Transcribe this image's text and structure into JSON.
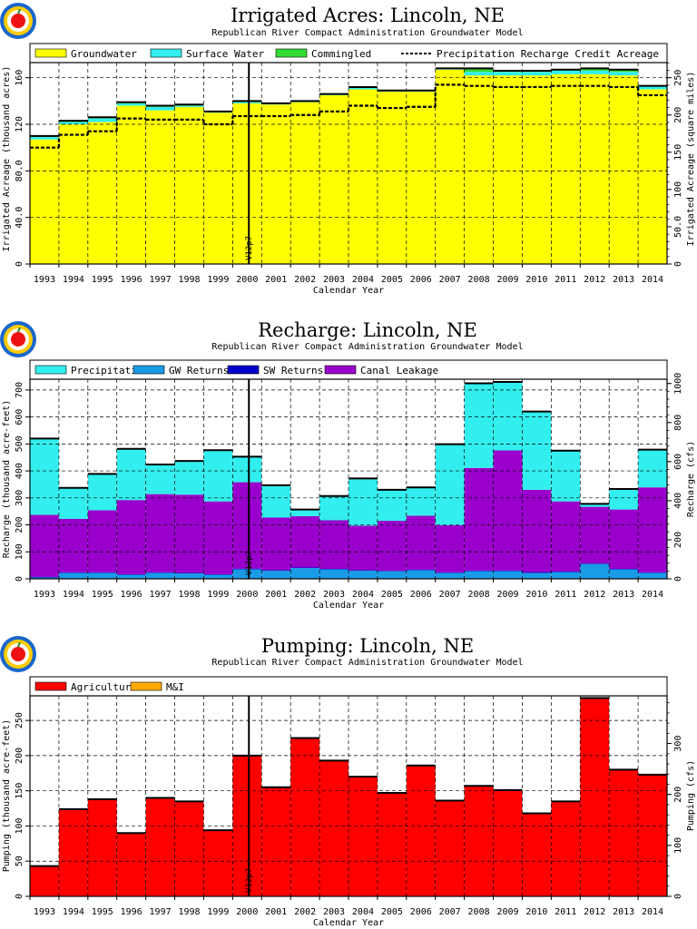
{
  "colors": {
    "groundwater": "#ffff00",
    "surface_water": "#33eeee",
    "commingled": "#33dd33",
    "precipitation": "#33eeee",
    "gw_returns": "#1a9be6",
    "sw_returns": "#0000cc",
    "canal_leakage": "#9900cc",
    "agricultural": "#ff0000",
    "mi": "#ffaa00"
  },
  "charts": [
    {
      "title": "Irrigated Acres: Lincoln, NE",
      "subtitle": "Republican River Compact Administration Groundwater Model"
    },
    {
      "title": "Recharge: Lincoln, NE",
      "subtitle": "Republican River Compact Administration Groundwater Model"
    },
    {
      "title": "Pumping: Lincoln, NE",
      "subtitle": "Republican River Compact Administration Groundwater Model"
    }
  ],
  "chart_data": [
    {
      "type": "bar",
      "stacked": true,
      "title": "Irrigated Acres: Lincoln, NE",
      "subtitle": "Republican River Compact Administration Groundwater Model",
      "xlabel": "Calendar Year",
      "ylabel": "Irrigated Acreage (thousand acres)",
      "y2label": "Irrigated Acreage (square miles)",
      "categories": [
        "1993",
        "1994",
        "1995",
        "1996",
        "1997",
        "1998",
        "1999",
        "2000",
        "2001",
        "2002",
        "2003",
        "2004",
        "2005",
        "2006",
        "2007",
        "2008",
        "2009",
        "2010",
        "2011",
        "2012",
        "2013",
        "2014"
      ],
      "ylim": [
        0,
        173
      ],
      "yticks": [
        "0",
        "40.0",
        "80.0",
        "120",
        "160"
      ],
      "ytick_values": [
        0,
        40,
        80,
        120,
        160
      ],
      "y2lim": [
        0,
        270.3
      ],
      "y2ticks": [
        "0",
        "50.0",
        "100",
        "150",
        "200",
        "250"
      ],
      "y2tick_values": [
        0,
        50,
        100,
        150,
        200,
        250
      ],
      "legend": [
        "Groundwater",
        "Surface Water",
        "Commingled",
        "Precipitation Recharge Credit Acreage"
      ],
      "series": [
        {
          "name": "Groundwater",
          "values": [
            107,
            120,
            122,
            136,
            132,
            135,
            130,
            138,
            137,
            139,
            145,
            150,
            148,
            148,
            167,
            162,
            162,
            162,
            163,
            163,
            162,
            150
          ]
        },
        {
          "name": "Surface Water",
          "values": [
            2,
            2,
            3,
            2,
            3,
            1,
            1,
            1,
            1,
            1,
            1,
            2,
            1,
            1,
            1,
            3,
            3,
            3,
            3,
            3,
            3,
            3
          ]
        },
        {
          "name": "Commingled",
          "values": [
            1,
            1,
            1,
            1,
            1,
            1,
            0,
            1,
            0,
            0,
            0,
            0,
            0,
            0,
            0,
            3,
            1,
            1,
            1,
            2,
            2,
            0
          ]
        }
      ],
      "line_series": {
        "name": "Precipitation Recharge Credit Acreage",
        "values": [
          100,
          111,
          114,
          125,
          124,
          124,
          120,
          127,
          127,
          128,
          131,
          136,
          134,
          135,
          154,
          153,
          152,
          152,
          153,
          153,
          152,
          145
        ]
      },
      "vline": {
        "x": 2001,
        "label": "V12p7"
      },
      "legend_location": "top"
    },
    {
      "type": "bar",
      "stacked": true,
      "title": "Recharge: Lincoln, NE",
      "subtitle": "Republican River Compact Administration Groundwater Model",
      "xlabel": "Calendar Year",
      "ylabel": "Recharge (thousand acre-feet)",
      "y2label": "Recharge (cfs)",
      "categories": [
        "1993",
        "1994",
        "1995",
        "1996",
        "1997",
        "1998",
        "1999",
        "2000",
        "2001",
        "2002",
        "2003",
        "2004",
        "2005",
        "2006",
        "2007",
        "2008",
        "2009",
        "2010",
        "2011",
        "2012",
        "2013",
        "2014"
      ],
      "ylim": [
        0,
        740
      ],
      "yticks": [
        "0",
        "100",
        "200",
        "300",
        "400",
        "500",
        "600",
        "700"
      ],
      "ytick_values": [
        0,
        100,
        200,
        300,
        400,
        500,
        600,
        700
      ],
      "y2lim": [
        0,
        1022
      ],
      "y2ticks": [
        "0",
        "200",
        "400",
        "600",
        "800",
        "1000"
      ],
      "y2tick_values": [
        0,
        200,
        400,
        600,
        800,
        1000
      ],
      "legend": [
        "Precipitation",
        "GW Returns",
        "SW Returns",
        "Canal Leakage"
      ],
      "series": [
        {
          "name": "GW Returns",
          "values": [
            5,
            22,
            22,
            15,
            22,
            20,
            15,
            35,
            30,
            40,
            35,
            30,
            28,
            32,
            22,
            28,
            28,
            22,
            25,
            55,
            35,
            22
          ]
        },
        {
          "name": "SW Returns",
          "values": [
            2,
            2,
            2,
            2,
            2,
            2,
            2,
            3,
            2,
            2,
            2,
            2,
            2,
            2,
            2,
            3,
            3,
            3,
            2,
            2,
            2,
            2
          ]
        },
        {
          "name": "Canal Leakage",
          "values": [
            230,
            198,
            230,
            275,
            290,
            290,
            270,
            320,
            195,
            190,
            180,
            165,
            185,
            200,
            175,
            380,
            445,
            305,
            260,
            210,
            220,
            315
          ]
        },
        {
          "name": "Precipitation",
          "values": [
            283,
            115,
            135,
            190,
            110,
            125,
            190,
            95,
            120,
            25,
            90,
            175,
            115,
            105,
            300,
            314,
            254,
            290,
            188,
            11,
            76,
            140
          ]
        }
      ],
      "vline": {
        "x": 2001,
        "label": "V12p7"
      },
      "legend_location": "top"
    },
    {
      "type": "bar",
      "stacked": true,
      "title": "Pumping: Lincoln, NE",
      "subtitle": "Republican River Compact Administration Groundwater Model",
      "xlabel": "Calendar Year",
      "ylabel": "Pumping (thousand acre-feet)",
      "y2label": "Pumping (cfs)",
      "categories": [
        "1993",
        "1994",
        "1995",
        "1996",
        "1997",
        "1998",
        "1999",
        "2000",
        "2001",
        "2002",
        "2003",
        "2004",
        "2005",
        "2006",
        "2007",
        "2008",
        "2009",
        "2010",
        "2011",
        "2012",
        "2013",
        "2014"
      ],
      "ylim": [
        0,
        285
      ],
      "yticks": [
        "0",
        "50",
        "100",
        "150",
        "200",
        "250"
      ],
      "ytick_values": [
        0,
        50,
        100,
        150,
        200,
        250
      ],
      "y2lim": [
        0,
        393.6
      ],
      "y2ticks": [
        "0",
        "100",
        "200",
        "300"
      ],
      "y2tick_values": [
        0,
        100,
        200,
        300
      ],
      "legend": [
        "Agricultural",
        "M&I"
      ],
      "series": [
        {
          "name": "Agricultural",
          "values": [
            43,
            124,
            138,
            90,
            140,
            135,
            94,
            200,
            155,
            225,
            193,
            170,
            147,
            186,
            136,
            157,
            151,
            118,
            135,
            282,
            180,
            173
          ]
        },
        {
          "name": "M&I",
          "values": [
            0,
            0,
            0,
            0,
            0,
            0,
            0,
            0,
            0,
            0,
            0,
            0,
            0,
            0,
            0,
            0,
            0,
            0,
            0,
            0,
            0,
            0
          ]
        }
      ],
      "vline": {
        "x": 2001,
        "label": "V12p7"
      },
      "legend_location": "top"
    }
  ]
}
